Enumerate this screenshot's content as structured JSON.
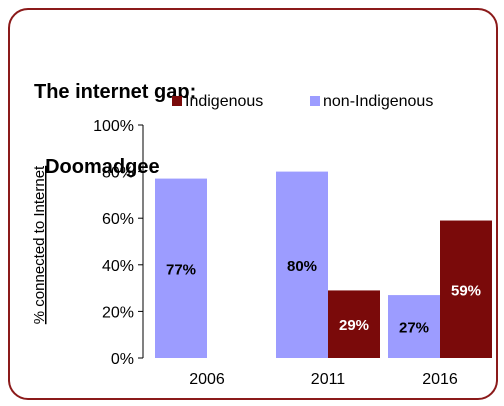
{
  "chart_data": {
    "type": "bar",
    "title_lines": [
      "The internet gap:",
      "  Doomadgee"
    ],
    "ylabel": "% connected to Internet",
    "xlabel": "",
    "categories": [
      "2006",
      "2011",
      "2016"
    ],
    "series": [
      {
        "name": "Indigenous",
        "color": "#7a0a0a",
        "label_color": "#ffffff",
        "values": [
          null,
          29,
          59
        ],
        "labels": [
          "",
          "29%",
          "59%"
        ]
      },
      {
        "name": "non-Indigenous",
        "color": "#9c9cff",
        "label_color": "#000000",
        "values": [
          77,
          80,
          27
        ],
        "labels": [
          "77%",
          "80%",
          "27%"
        ]
      }
    ],
    "ylim": [
      0,
      100
    ],
    "yticks": [
      "0%",
      "20%",
      "40%",
      "60%",
      "80%",
      "100%"
    ],
    "ytick_values": [
      0,
      20,
      40,
      60,
      80,
      100
    ],
    "grid": false,
    "legend_position": "top"
  }
}
